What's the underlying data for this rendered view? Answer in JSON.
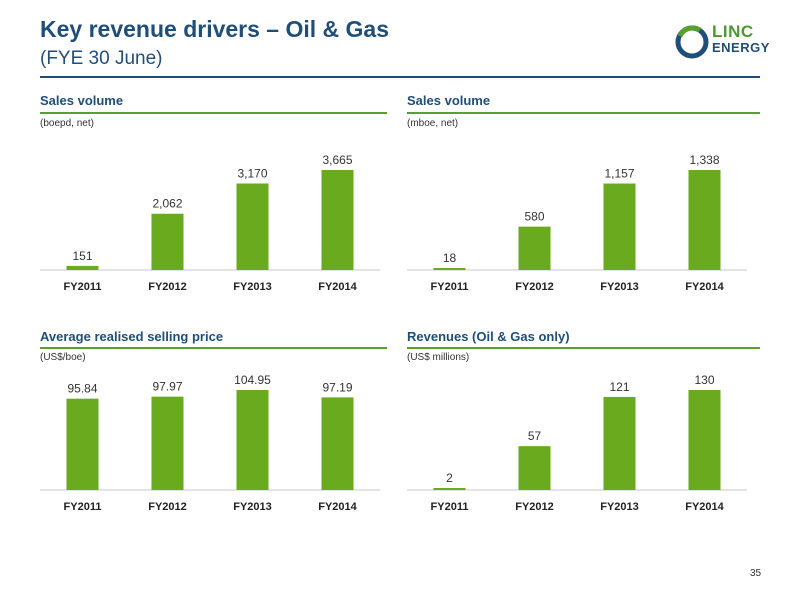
{
  "header": {
    "title": "Key revenue drivers – Oil & Gas",
    "subtitle": "(FYE 30 June)",
    "logo": {
      "line1": "LINC",
      "line2": "ENERGY"
    }
  },
  "page_number": "35",
  "colors": {
    "bar": "#6aaa1e",
    "title": "#1f4e79",
    "rule": "#5aa02c"
  },
  "panels": [
    {
      "title": "Sales volume",
      "unit": "(boepd, net)"
    },
    {
      "title": "Sales volume",
      "unit": "(mboe, net)"
    },
    {
      "title": "Average realised selling price",
      "unit": "(US$/boe)"
    },
    {
      "title": "Revenues (Oil & Gas only)",
      "unit": "(US$ millions)"
    }
  ],
  "chart_data": [
    {
      "type": "bar",
      "title": "Sales volume",
      "ylabel": "(boepd, net)",
      "categories": [
        "FY2011",
        "FY2012",
        "FY2013",
        "FY2014"
      ],
      "values": [
        151,
        2062,
        3170,
        3665
      ],
      "value_labels": [
        "151",
        "2,062",
        "3,170",
        "3,665"
      ],
      "ylim": [
        0,
        3665
      ],
      "grid": false
    },
    {
      "type": "bar",
      "title": "Sales volume",
      "ylabel": "(mboe, net)",
      "categories": [
        "FY2011",
        "FY2012",
        "FY2013",
        "FY2014"
      ],
      "values": [
        18,
        580,
        1157,
        1338
      ],
      "value_labels": [
        "18",
        "580",
        "1,157",
        "1,338"
      ],
      "ylim": [
        0,
        1338
      ],
      "grid": false
    },
    {
      "type": "bar",
      "title": "Average realised selling price",
      "ylabel": "(US$/boe)",
      "categories": [
        "FY2011",
        "FY2012",
        "FY2013",
        "FY2014"
      ],
      "values": [
        95.84,
        97.97,
        104.95,
        97.19
      ],
      "value_labels": [
        "95.84",
        "97.97",
        "104.95",
        "97.19"
      ],
      "ylim": [
        0,
        104.95
      ],
      "grid": false
    },
    {
      "type": "bar",
      "title": "Revenues (Oil & Gas only)",
      "ylabel": "(US$ millions)",
      "categories": [
        "FY2011",
        "FY2012",
        "FY2013",
        "FY2014"
      ],
      "values": [
        2,
        57,
        121,
        130
      ],
      "value_labels": [
        "2",
        "57",
        "121",
        "130"
      ],
      "ylim": [
        0,
        130
      ],
      "grid": false
    }
  ]
}
